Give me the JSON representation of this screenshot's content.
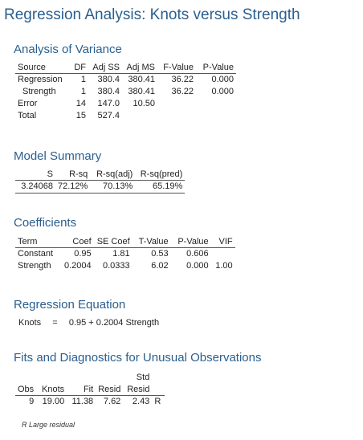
{
  "title": "Regression Analysis: Knots versus Strength",
  "anova": {
    "heading": "Analysis of Variance",
    "columns": [
      "Source",
      "DF",
      "Adj SS",
      "Adj MS",
      "F-Value",
      "P-Value"
    ],
    "rows": [
      [
        "Regression",
        "1",
        "380.4",
        "380.41",
        "36.22",
        "0.000"
      ],
      [
        "Strength",
        "1",
        "380.4",
        "380.41",
        "36.22",
        "0.000"
      ],
      [
        "Error",
        "14",
        "147.0",
        "10.50",
        "",
        ""
      ],
      [
        "Total",
        "15",
        "527.4",
        "",
        "",
        ""
      ]
    ]
  },
  "model_summary": {
    "heading": "Model Summary",
    "columns": [
      "S",
      "R-sq",
      "R-sq(adj)",
      "R-sq(pred)"
    ],
    "rows": [
      [
        "3.24068",
        "72.12%",
        "70.13%",
        "65.19%"
      ]
    ]
  },
  "coefficients": {
    "heading": "Coefficients",
    "columns": [
      "Term",
      "Coef",
      "SE Coef",
      "T-Value",
      "P-Value",
      "VIF"
    ],
    "rows": [
      [
        "Constant",
        "0.95",
        "1.81",
        "0.53",
        "0.606",
        ""
      ],
      [
        "Strength",
        "0.2004",
        "0.0333",
        "6.02",
        "0.000",
        "1.00"
      ]
    ]
  },
  "regression_equation": {
    "heading": "Regression Equation",
    "lhs": "Knots",
    "equals": "=",
    "rhs": "0.95 + 0.2004 Strength"
  },
  "fits": {
    "heading": "Fits and Diagnostics for Unusual Observations",
    "header_top": [
      "",
      "",
      "",
      "",
      "Std",
      ""
    ],
    "columns": [
      "Obs",
      "Knots",
      "Fit",
      "Resid",
      "Resid",
      ""
    ],
    "rows": [
      [
        "9",
        "19.00",
        "11.38",
        "7.62",
        "2.43",
        "R"
      ]
    ],
    "footnote": "R  Large residual"
  }
}
